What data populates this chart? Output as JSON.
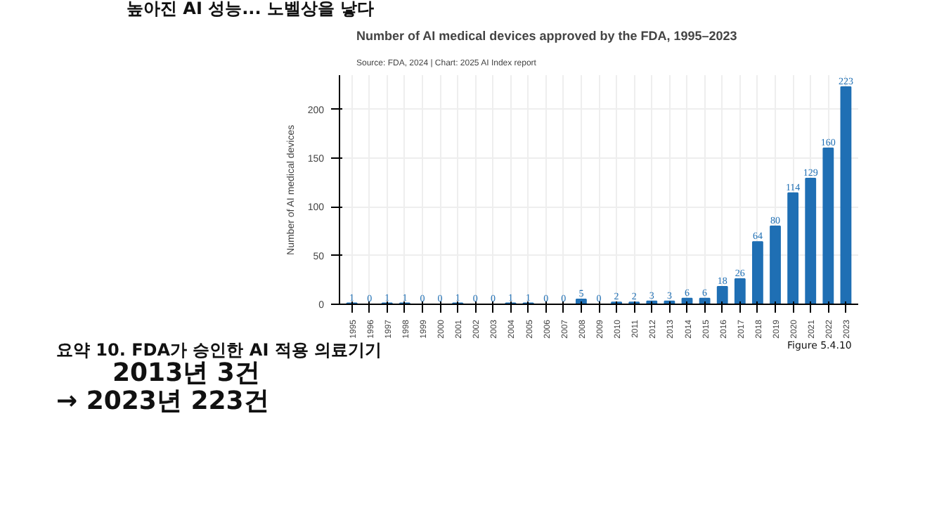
{
  "chart_data": {
    "type": "bar",
    "title": "Number of AI medical devices approved by the FDA, 1995–2023",
    "subtitle": "Source: FDA, 2024 | Chart: 2025 AI Index report",
    "ylabel": "Number of AI medical devices",
    "categories": [
      "1995",
      "1996",
      "1997",
      "1998",
      "1999",
      "2000",
      "2001",
      "2002",
      "2003",
      "2004",
      "2005",
      "2006",
      "2007",
      "2008",
      "2009",
      "2010",
      "2011",
      "2012",
      "2013",
      "2014",
      "2015",
      "2016",
      "2017",
      "2018",
      "2019",
      "2020",
      "2021",
      "2022",
      "2023"
    ],
    "values": [
      1,
      0,
      1,
      1,
      0,
      0,
      1,
      0,
      0,
      1,
      1,
      0,
      0,
      5,
      0,
      2,
      2,
      3,
      3,
      6,
      6,
      18,
      26,
      64,
      80,
      114,
      129,
      160,
      223
    ],
    "color": "#1f6fb4",
    "ylim": [
      0,
      235
    ],
    "yticks": [
      0,
      50,
      100,
      150,
      200
    ],
    "grid": true,
    "data_labels": true,
    "annotations": [
      "높아진 AI 성능... 노벨상을 낳다",
      "요약 10. FDA가 승인한 AI 적용 의료기기",
      "2013년 3건",
      "→ 2023년 223건",
      "Figure 5.4.10"
    ]
  }
}
